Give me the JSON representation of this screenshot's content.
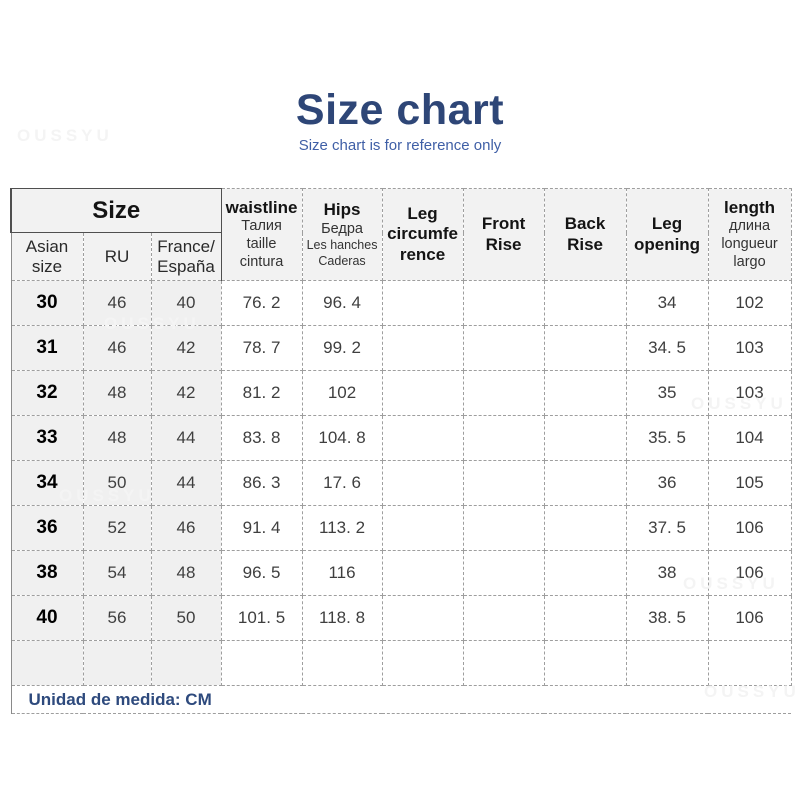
{
  "title": "Size chart",
  "subtitle": "Size chart is for reference only",
  "footer_note": "Unidad de medida: CM",
  "watermark": "OUSSYU",
  "colors": {
    "title": "#2e4677",
    "subtitle": "#3f5fa6",
    "footer": "#2e4a7d",
    "header_bg": "#f2f2f2",
    "size_columns_bg": "#f0f0f0",
    "dashed_border": "#9e9e9e",
    "solid_border": "#4f4f4f",
    "body_text": "#3f3f3f",
    "watermark": "#f4f4f4"
  },
  "chart_data": {
    "type": "table",
    "unit": "CM",
    "size_group_label": "Size",
    "size_sub_columns": [
      "Asian\nsize",
      "RU",
      "France/\nEspaña"
    ],
    "columns": [
      {
        "label": "waistline",
        "display": "waistline",
        "sub": "Талия\ntaille\ncintura"
      },
      {
        "label": "Hips",
        "display": "Hips",
        "sub": "Бедра",
        "sub2": "Les hanches\nCaderas"
      },
      {
        "label": "Leg circumference",
        "display": "Leg\ncircumfe\nrence"
      },
      {
        "label": "Front Rise",
        "display": "Front\nRise"
      },
      {
        "label": "Back Rise",
        "display": "Back\nRise"
      },
      {
        "label": "Leg opening",
        "display": "Leg\nopening"
      },
      {
        "label": "length",
        "display": "length",
        "sub": "длина\nlongueur\nlargo"
      }
    ],
    "rows": [
      {
        "asian_size": "30",
        "ru": "46",
        "france": "40",
        "waistline": "76. 2",
        "hips": "96. 4",
        "leg_circumference": "",
        "front_rise": "",
        "back_rise": "",
        "leg_opening": "34",
        "length": "102"
      },
      {
        "asian_size": "31",
        "ru": "46",
        "france": "42",
        "waistline": "78. 7",
        "hips": "99. 2",
        "leg_circumference": "",
        "front_rise": "",
        "back_rise": "",
        "leg_opening": "34. 5",
        "length": "103"
      },
      {
        "asian_size": "32",
        "ru": "48",
        "france": "42",
        "waistline": "81. 2",
        "hips": "102",
        "leg_circumference": "",
        "front_rise": "",
        "back_rise": "",
        "leg_opening": "35",
        "length": "103"
      },
      {
        "asian_size": "33",
        "ru": "48",
        "france": "44",
        "waistline": "83. 8",
        "hips": "104. 8",
        "leg_circumference": "",
        "front_rise": "",
        "back_rise": "",
        "leg_opening": "35. 5",
        "length": "104"
      },
      {
        "asian_size": "34",
        "ru": "50",
        "france": "44",
        "waistline": "86. 3",
        "hips": "17. 6",
        "leg_circumference": "",
        "front_rise": "",
        "back_rise": "",
        "leg_opening": "36",
        "length": "105"
      },
      {
        "asian_size": "36",
        "ru": "52",
        "france": "46",
        "waistline": "91. 4",
        "hips": "113. 2",
        "leg_circumference": "",
        "front_rise": "",
        "back_rise": "",
        "leg_opening": "37. 5",
        "length": "106"
      },
      {
        "asian_size": "38",
        "ru": "54",
        "france": "48",
        "waistline": "96. 5",
        "hips": "116",
        "leg_circumference": "",
        "front_rise": "",
        "back_rise": "",
        "leg_opening": "38",
        "length": "106"
      },
      {
        "asian_size": "40",
        "ru": "56",
        "france": "50",
        "waistline": "101. 5",
        "hips": "118. 8",
        "leg_circumference": "",
        "front_rise": "",
        "back_rise": "",
        "leg_opening": "38. 5",
        "length": "106"
      },
      {
        "asian_size": "",
        "ru": "",
        "france": "",
        "waistline": "",
        "hips": "",
        "leg_circumference": "",
        "front_rise": "",
        "back_rise": "",
        "leg_opening": "",
        "length": ""
      }
    ]
  }
}
